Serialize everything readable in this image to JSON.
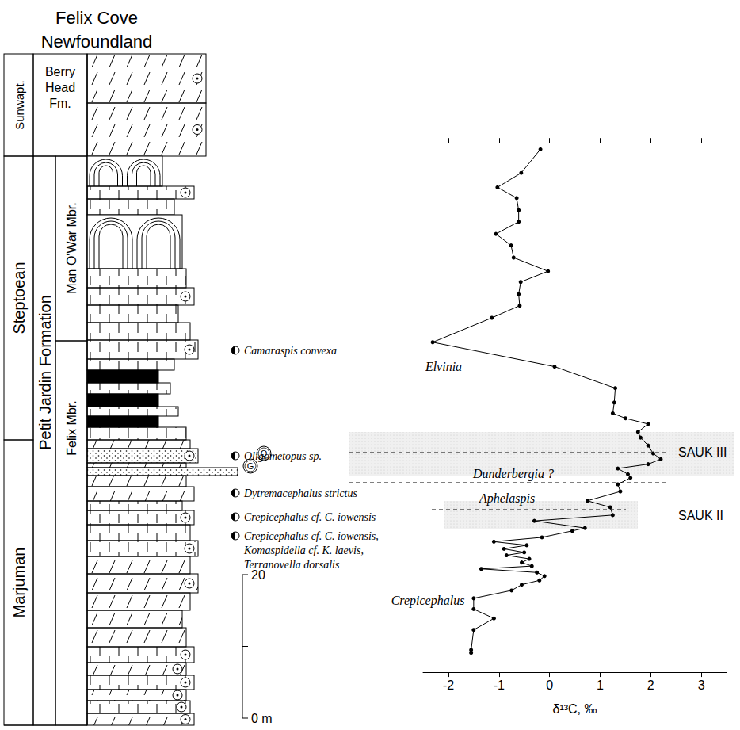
{
  "title": [
    "Felix Cove",
    "Newfoundland"
  ],
  "chart_data": {
    "type": "line",
    "xlabel": "δ¹³C, ‰",
    "x": [
      -0.18,
      -0.56,
      -1.03,
      -0.65,
      -0.61,
      -0.61,
      -1.06,
      -0.76,
      -0.71,
      -0.03,
      -0.57,
      -0.61,
      -0.59,
      -1.14,
      -2.31,
      0.1,
      1.3,
      1.28,
      1.25,
      1.5,
      1.95,
      1.75,
      1.8,
      1.95,
      2.05,
      2.2,
      1.95,
      1.35,
      1.55,
      1.6,
      1.35,
      1.4,
      0.75,
      1.2,
      1.25,
      -0.3,
      0.7,
      0.45,
      -0.15,
      -1.1,
      -0.45,
      -0.9,
      -0.5,
      -0.85,
      -0.4,
      -0.55,
      -0.35,
      -1.35,
      -0.25,
      -0.1,
      -0.2,
      -0.55,
      -0.75,
      -1.5,
      -1.5,
      -1.1,
      -1.5,
      -1.55,
      -1.55
    ],
    "y": [
      79.3,
      76.0,
      74.0,
      72.5,
      70.8,
      69.2,
      67.5,
      65.9,
      64.2,
      62.3,
      60.8,
      59.1,
      57.5,
      55.8,
      52.4,
      49.0,
      46.0,
      44.0,
      42.5,
      41.8,
      41.0,
      39.9,
      39.1,
      38.0,
      36.9,
      36.1,
      35.4,
      34.8,
      34.0,
      33.5,
      32.6,
      31.6,
      30.3,
      29.4,
      28.3,
      27.5,
      26.5,
      26.1,
      25.2,
      24.6,
      24.1,
      23.6,
      23.1,
      22.7,
      22.2,
      21.7,
      21.2,
      20.8,
      20.3,
      19.8,
      19.2,
      18.6,
      17.8,
      16.7,
      15.2,
      13.9,
      12.3,
      9.5,
      9.1
    ],
    "xlim": [
      -2.5,
      3.5
    ],
    "xticks": [
      -2,
      -1,
      0,
      1,
      2,
      3
    ],
    "ylim": [
      6.4,
      80.2
    ],
    "tick_labels": "x",
    "grid": false,
    "color": "#000000",
    "marker": "circle",
    "annotations": [
      "Elvinia",
      "Dunderbergia ?",
      "Aphelaspis",
      "Crepicephalus",
      "SAUK III",
      "SAUK II"
    ]
  },
  "column": {
    "stages": [
      "Sunwapt.",
      "Steptoean",
      "Marjuman"
    ],
    "formations": [
      "Berry Head Fm.",
      "Petit Jardin Formation"
    ],
    "members": [
      "Man O'War Mbr.",
      "Felix Mbr."
    ],
    "fossils": [
      [
        "Camaraspis convexa"
      ],
      [
        "Oligometopus sp."
      ],
      [
        "Dytremacephalus strictus"
      ],
      [
        "Crepicephalus cf. C. iowensis"
      ],
      [
        "Crepicephalus cf. C. iowensis,",
        "Komaspidella cf. K. laevis,",
        "Terranovella dorsalis"
      ]
    ],
    "grain_marks": [
      "G",
      "Q"
    ],
    "scale": {
      "ticks": [
        {
          "value": 0,
          "label": "0 m"
        },
        20
      ]
    }
  }
}
